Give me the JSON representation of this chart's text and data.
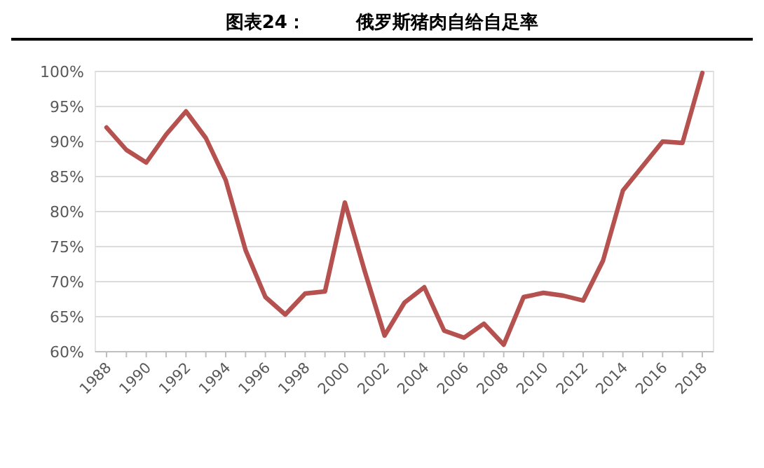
{
  "chart_data": {
    "type": "line",
    "title": "图表24：        俄罗斯猪肉自给自足率",
    "categories": [
      "1988",
      null,
      "1990",
      null,
      "1992",
      null,
      "1994",
      null,
      "1996",
      null,
      "1998",
      null,
      "2000",
      null,
      "2002",
      null,
      "2004",
      null,
      "2006",
      null,
      "2008",
      null,
      "2010",
      null,
      "2012",
      null,
      "2014",
      null,
      "2016",
      null,
      "2018"
    ],
    "series": [
      {
        "color": "#b5514f",
        "values": [
          92,
          88.8,
          87,
          91,
          94.3,
          90.5,
          84.5,
          74.5,
          67.8,
          65.3,
          68.3,
          68.6,
          81.3,
          71.5,
          62.3,
          67,
          69.2,
          63,
          62,
          64,
          61,
          67.8,
          68.4,
          68,
          67.3,
          73,
          83,
          86.5,
          90,
          89.8,
          99.8
        ]
      }
    ],
    "ylim": [
      60,
      100
    ],
    "yticks": [
      {
        "value": 60,
        "label": "60%"
      },
      {
        "value": 65,
        "label": "65%"
      },
      {
        "value": 70,
        "label": "70%"
      },
      {
        "value": 75,
        "label": "75%"
      },
      {
        "value": 80,
        "label": "80%"
      },
      {
        "value": 85,
        "label": "85%"
      },
      {
        "value": 90,
        "label": "90%"
      },
      {
        "value": 95,
        "label": "95%"
      },
      {
        "value": 100,
        "label": "100%"
      }
    ],
    "grid": "y",
    "marker": "none",
    "line_style": "solid"
  }
}
